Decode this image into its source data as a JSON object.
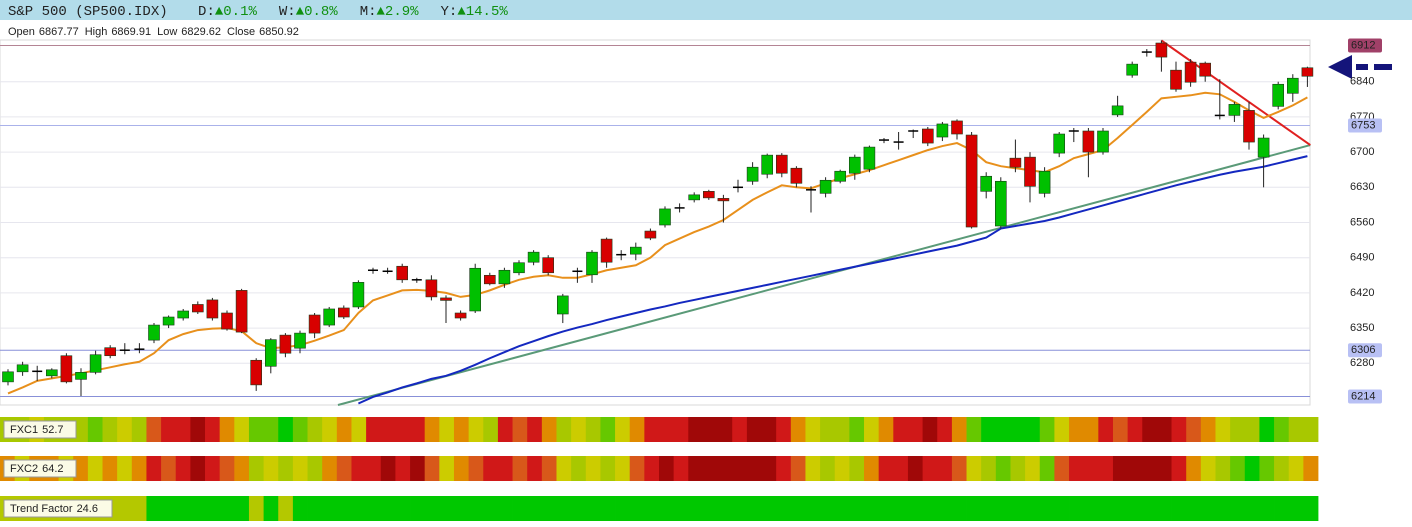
{
  "header": {
    "symbol": "S&P 500 (SP500.IDX)",
    "changes": [
      {
        "label": "D:",
        "value": "▲0.1%"
      },
      {
        "label": "W:",
        "value": "▲0.8%"
      },
      {
        "label": "M:",
        "value": "▲2.9%"
      },
      {
        "label": "Y:",
        "value": "▲14.5%"
      }
    ]
  },
  "chart_data": {
    "type": "candlestick",
    "ohlc_summary": [
      {
        "label": "Open",
        "value": 6867.77
      },
      {
        "label": "High",
        "value": 6869.91
      },
      {
        "label": "Low",
        "value": 6829.62
      },
      {
        "label": "Close",
        "value": 6850.92
      }
    ],
    "up_color": "#00c000",
    "down_color": "#d80000",
    "open": [
      6243,
      6263,
      6262,
      6255,
      6295,
      6248,
      6262,
      6311,
      6306,
      6308,
      6326,
      6356,
      6370,
      6397,
      6406,
      6380,
      6425,
      6286,
      6274,
      6336,
      6310,
      6376,
      6356,
      6390,
      6392,
      6465,
      6463,
      6473,
      6446,
      6446,
      6410,
      6380,
      6384,
      6455,
      6438,
      6460,
      6481,
      6490,
      6378,
      6463,
      6456,
      6527,
      6496,
      6497,
      6543,
      6555,
      6589,
      6605,
      6622,
      6608,
      6630,
      6642,
      6656,
      6694,
      6668,
      6625,
      6618,
      6642,
      6658,
      6666,
      6724,
      6720,
      6742,
      6746,
      6730,
      6762,
      6734,
      6622,
      6553,
      6688,
      6690,
      6618,
      6698,
      6742,
      6742,
      6700,
      6774,
      6853,
      6899,
      6917,
      6863,
      6879,
      6877,
      6773,
      6773,
      6783,
      6690,
      6791,
      6817,
      6867.77
    ],
    "high": [
      6268,
      6283,
      6275,
      6270,
      6300,
      6270,
      6305,
      6316,
      6320,
      6320,
      6360,
      6375,
      6388,
      6403,
      6410,
      6385,
      6428,
      6290,
      6330,
      6340,
      6345,
      6380,
      6392,
      6395,
      6445,
      6470,
      6470,
      6478,
      6450,
      6455,
      6415,
      6385,
      6478,
      6460,
      6470,
      6485,
      6505,
      6495,
      6418,
      6470,
      6505,
      6530,
      6505,
      6520,
      6548,
      6592,
      6598,
      6620,
      6625,
      6615,
      6645,
      6680,
      6697,
      6698,
      6672,
      6632,
      6650,
      6665,
      6695,
      6713,
      6728,
      6740,
      6745,
      6750,
      6760,
      6765,
      6740,
      6660,
      6650,
      6725,
      6700,
      6670,
      6740,
      6748,
      6748,
      6748,
      6812,
      6880,
      6905,
      6922,
      6880,
      6885,
      6880,
      6845,
      6800,
      6800,
      6735,
      6840,
      6855,
      6869.91
    ],
    "low": [
      6236,
      6255,
      6245,
      6250,
      6240,
      6215,
      6258,
      6290,
      6298,
      6300,
      6320,
      6350,
      6365,
      6378,
      6365,
      6345,
      6340,
      6225,
      6260,
      6292,
      6300,
      6330,
      6352,
      6368,
      6388,
      6458,
      6458,
      6440,
      6440,
      6405,
      6360,
      6365,
      6380,
      6435,
      6430,
      6455,
      6475,
      6455,
      6360,
      6440,
      6440,
      6470,
      6485,
      6485,
      6525,
      6550,
      6580,
      6600,
      6605,
      6560,
      6620,
      6635,
      6648,
      6650,
      6630,
      6580,
      6610,
      6638,
      6645,
      6660,
      6718,
      6705,
      6728,
      6712,
      6722,
      6725,
      6548,
      6608,
      6548,
      6660,
      6600,
      6610,
      6690,
      6720,
      6650,
      6695,
      6770,
      6848,
      6890,
      6860,
      6820,
      6830,
      6840,
      6765,
      6760,
      6705,
      6630,
      6785,
      6800,
      6829.62
    ],
    "close": [
      6263,
      6277,
      6264,
      6267,
      6243,
      6262,
      6297,
      6295,
      6306,
      6307,
      6356,
      6372,
      6384,
      6382,
      6370,
      6348,
      6342,
      6237,
      6327,
      6300,
      6340,
      6340,
      6388,
      6372,
      6441,
      6465,
      6462,
      6446,
      6446,
      6412,
      6405,
      6370,
      6469,
      6438,
      6465,
      6480,
      6501,
      6460,
      6414,
      6463,
      6501,
      6481,
      6496,
      6511,
      6529,
      6587,
      6589,
      6615,
      6609,
      6603,
      6630,
      6670,
      6694,
      6658,
      6638,
      6625,
      6644,
      6662,
      6690,
      6710,
      6724,
      6719,
      6741,
      6718,
      6756,
      6736,
      6551,
      6652,
      6642,
      6670,
      6632,
      6662,
      6736,
      6741,
      6700,
      6742,
      6792,
      6875,
      6899,
      6889,
      6825,
      6839,
      6851,
      6773,
      6795,
      6720,
      6728,
      6835,
      6847,
      6850.92
    ],
    "series": [
      {
        "color": "#e8901c",
        "values": [
          6220,
          6232,
          6245,
          6250,
          6255,
          6260,
          6266,
          6272,
          6278,
          6283,
          6300,
          6326,
          6338,
          6346,
          6349,
          6350,
          6344,
          6320,
          6310,
          6312,
          6316,
          6325,
          6335,
          6346,
          6380,
          6405,
          6415,
          6425,
          6426,
          6424,
          6420,
          6412,
          6416,
          6425,
          6436,
          6446,
          6452,
          6455,
          6450,
          6450,
          6457,
          6465,
          6470,
          6475,
          6490,
          6515,
          6528,
          6541,
          6552,
          6565,
          6585,
          6605,
          6620,
          6634,
          6630,
          6628,
          6638,
          6648,
          6656,
          6664,
          6674,
          6684,
          6694,
          6704,
          6712,
          6718,
          6704,
          6680,
          6672,
          6668,
          6664,
          6660,
          6672,
          6688,
          6696,
          6704,
          6728,
          6754,
          6780,
          6807,
          6810,
          6813,
          6818,
          6815,
          6800,
          6783,
          6768,
          6780,
          6793,
          6809
        ]
      },
      {
        "color": "#1428c0",
        "values": [
          null,
          null,
          null,
          null,
          null,
          null,
          null,
          null,
          null,
          null,
          null,
          null,
          null,
          null,
          null,
          null,
          null,
          null,
          null,
          null,
          null,
          null,
          null,
          null,
          6200,
          6213,
          6222,
          6232,
          6240,
          6249,
          6255,
          6265,
          6277,
          6290,
          6302,
          6314,
          6324,
          6334,
          6343,
          6351,
          6358,
          6366,
          6373,
          6380,
          6387,
          6393,
          6400,
          6406,
          6412,
          6418,
          6424,
          6430,
          6436,
          6442,
          6448,
          6454,
          6460,
          6466,
          6472,
          6478,
          6484,
          6490,
          6496,
          6502,
          6508,
          6514,
          6522,
          6530,
          6548,
          6553,
          6558,
          6563,
          6570,
          6578,
          6586,
          6594,
          6602,
          6610,
          6618,
          6626,
          6634,
          6641,
          6648,
          6655,
          6661,
          6666,
          6671,
          6678,
          6685,
          6692
        ]
      }
    ],
    "trend_lines": [
      {
        "color": "#5a9a78",
        "x": [
          22.6,
          89.2
        ],
        "values": [
          6197,
          6714
        ]
      },
      {
        "color": "#e02020",
        "x": [
          79,
          89.2
        ],
        "values": [
          6922,
          6714
        ]
      }
    ],
    "levels": [
      {
        "value": 6912,
        "line_color": "#b48494",
        "label_bg": "#a04068",
        "label_color": "#ffffff"
      },
      {
        "value": 6753,
        "line_color": "#aab2ea",
        "label_bg": "#b8c0f4",
        "label_color": "#222244"
      },
      {
        "value": 6306,
        "line_color": "#8890d8",
        "label_bg": "#b8c0f4",
        "label_color": "#222244"
      },
      {
        "value": 6214,
        "line_color": "#8890d8",
        "label_bg": "#b8c0f4",
        "label_color": "#222244"
      }
    ],
    "ylim": [
      6197,
      6923
    ],
    "yticks": [
      6280,
      6350,
      6420,
      6490,
      6560,
      6630,
      6700,
      6770,
      6840
    ],
    "grid": true,
    "indicators": [
      {
        "name": "FXC1",
        "value": 52.7,
        "colors": [
          "#a8c800",
          "#a8c800",
          "#cccc00",
          "#a8c800",
          "#a8c800",
          "#a8c800",
          "#66c800",
          "#a8c800",
          "#cccc00",
          "#a8c800",
          "#d8581a",
          "#d01818",
          "#d01818",
          "#a00808",
          "#d01818",
          "#e08a00",
          "#cccc00",
          "#66c800",
          "#66c800",
          "#00c800",
          "#66c800",
          "#a8c800",
          "#cccc00",
          "#e08a00",
          "#cccc00",
          "#d01818",
          "#d01818",
          "#d01818",
          "#d01818",
          "#e08a00",
          "#cccc00",
          "#e08a00",
          "#cccc00",
          "#a8c800",
          "#d01818",
          "#d8581a",
          "#d01818",
          "#e08a00",
          "#a8c800",
          "#cccc00",
          "#a8c800",
          "#66c800",
          "#cccc00",
          "#e08a00",
          "#d01818",
          "#d01818",
          "#d01818",
          "#a00808",
          "#a00808",
          "#a00808",
          "#d01818",
          "#a00808",
          "#a00808",
          "#d01818",
          "#e08a00",
          "#cccc00",
          "#a8c800",
          "#a8c800",
          "#66c800",
          "#cccc00",
          "#e08a00",
          "#d01818",
          "#d01818",
          "#a00808",
          "#d01818",
          "#e08a00",
          "#66c800",
          "#00c800",
          "#00c800",
          "#00c800",
          "#00c800",
          "#66c800",
          "#cccc00",
          "#e08a00",
          "#e08a00",
          "#d01818",
          "#d8581a",
          "#d01818",
          "#a00808",
          "#a00808",
          "#d01818",
          "#d8581a",
          "#e08a00",
          "#cccc00",
          "#a8c800",
          "#a8c800",
          "#00c800",
          "#66c800",
          "#a8c800",
          "#a8c800"
        ]
      },
      {
        "name": "FXC2",
        "value": 64.2,
        "colors": [
          "#e08a00",
          "#cccc00",
          "#e08a00",
          "#e08a00",
          "#cccc00",
          "#e08a00",
          "#cccc00",
          "#e08a00",
          "#cccc00",
          "#e08a00",
          "#d01818",
          "#d8581a",
          "#d01818",
          "#a00808",
          "#d01818",
          "#d8581a",
          "#e08a00",
          "#a8c800",
          "#cccc00",
          "#a8c800",
          "#cccc00",
          "#a8c800",
          "#e08a00",
          "#d8581a",
          "#d01818",
          "#d01818",
          "#a00808",
          "#d01818",
          "#a00808",
          "#d8581a",
          "#cccc00",
          "#e08a00",
          "#d8581a",
          "#d01818",
          "#d01818",
          "#d8581a",
          "#d01818",
          "#d8581a",
          "#cccc00",
          "#a8c800",
          "#cccc00",
          "#a8c800",
          "#cccc00",
          "#d8581a",
          "#d01818",
          "#a00808",
          "#d01818",
          "#a00808",
          "#a00808",
          "#a00808",
          "#a00808",
          "#a00808",
          "#a00808",
          "#d01818",
          "#d8581a",
          "#cccc00",
          "#a8c800",
          "#cccc00",
          "#a8c800",
          "#e08a00",
          "#d01818",
          "#d01818",
          "#a00808",
          "#d01818",
          "#d01818",
          "#d8581a",
          "#cccc00",
          "#a8c800",
          "#66c800",
          "#a8c800",
          "#cccc00",
          "#66c800",
          "#d8581a",
          "#d01818",
          "#d01818",
          "#d01818",
          "#a00808",
          "#a00808",
          "#a00808",
          "#a00808",
          "#d01818",
          "#e08a00",
          "#cccc00",
          "#a8c800",
          "#66c800",
          "#00c800",
          "#66c800",
          "#a8c800",
          "#cccc00",
          "#e08a00"
        ]
      },
      {
        "name": "Trend Factor",
        "value": 24.6,
        "colors": [
          "#b4c800",
          "#b4c800",
          "#b4c800",
          "#b4c800",
          "#b4c800",
          "#b4c800",
          "#b4c800",
          "#b4c800",
          "#b4c800",
          "#b4c800",
          "#00c800",
          "#00c800",
          "#00c800",
          "#00c800",
          "#00c800",
          "#00c800",
          "#00c800",
          "#b4c800",
          "#00c800",
          "#b4c800",
          "#00c800",
          "#00c800",
          "#00c800",
          "#00c800",
          "#00c800",
          "#00c800",
          "#00c800",
          "#00c800",
          "#00c800",
          "#00c800",
          "#00c800",
          "#00c800",
          "#00c800",
          "#00c800",
          "#00c800",
          "#00c800",
          "#00c800",
          "#00c800",
          "#00c800",
          "#00c800",
          "#00c800",
          "#00c800",
          "#00c800",
          "#00c800",
          "#00c800",
          "#00c800",
          "#00c800",
          "#00c800",
          "#00c800",
          "#00c800",
          "#00c800",
          "#00c800",
          "#00c800",
          "#00c800",
          "#00c800",
          "#00c800",
          "#00c800",
          "#00c800",
          "#00c800",
          "#00c800",
          "#00c800",
          "#00c800",
          "#00c800",
          "#00c800",
          "#00c800",
          "#00c800",
          "#00c800",
          "#00c800",
          "#00c800",
          "#00c800",
          "#00c800",
          "#00c800",
          "#00c800",
          "#00c800",
          "#00c800",
          "#00c800",
          "#00c800",
          "#00c800",
          "#00c800",
          "#00c800",
          "#00c800",
          "#00c800",
          "#00c800",
          "#00c800",
          "#00c800",
          "#00c800",
          "#00c800",
          "#00c800",
          "#00c800",
          "#00c800"
        ]
      }
    ]
  }
}
